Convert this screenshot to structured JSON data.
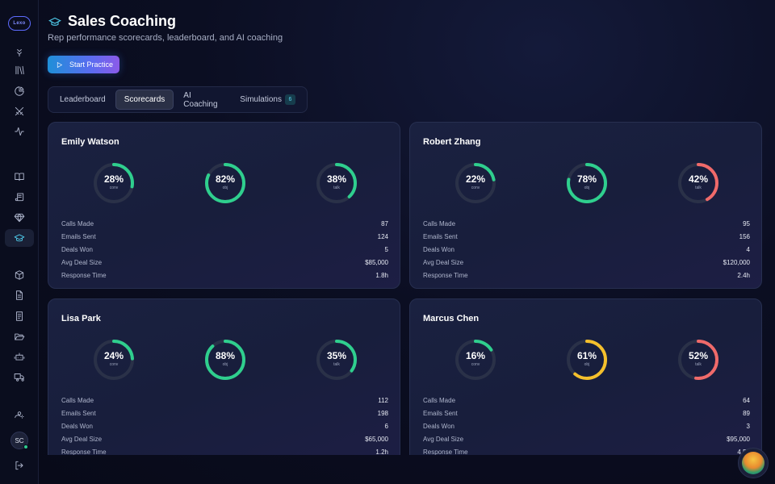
{
  "sidebar": {
    "logo_text": "Lexo",
    "items": [
      {
        "icon": "filter-icon"
      },
      {
        "icon": "library-icon"
      },
      {
        "icon": "pie-chart-icon"
      },
      {
        "icon": "swords-icon"
      },
      {
        "icon": "activity-icon"
      },
      {
        "icon": "book-open-icon"
      },
      {
        "icon": "scroll-icon"
      },
      {
        "icon": "gem-icon"
      },
      {
        "icon": "graduation-cap-icon",
        "active": true
      },
      {
        "icon": "package-icon"
      },
      {
        "icon": "file-text-icon"
      },
      {
        "icon": "receipt-icon"
      },
      {
        "icon": "folder-open-icon"
      },
      {
        "icon": "bot-icon"
      },
      {
        "icon": "truck-icon"
      },
      {
        "icon": "user-cog-icon"
      },
      {
        "icon": "log-out-icon"
      }
    ],
    "avatar_initials": "SC"
  },
  "header": {
    "title": "Sales Coaching",
    "subtitle": "Rep performance scorecards, leaderboard, and AI coaching",
    "start_button": "Start Practice"
  },
  "tabs": [
    {
      "label": "Leaderboard"
    },
    {
      "label": "Scorecards",
      "active": true
    },
    {
      "label": "AI Coaching"
    },
    {
      "label": "Simulations",
      "badge": "6"
    }
  ],
  "colors": {
    "green": "#2fcf8e",
    "yellow": "#f5c02c",
    "red": "#f06a6a",
    "track": "#2a3148"
  },
  "stat_labels": [
    "Calls Made",
    "Emails Sent",
    "Deals Won",
    "Avg Deal Size",
    "Response Time"
  ],
  "reps": [
    {
      "name": "Emily Watson",
      "rings": [
        {
          "pct": "28%",
          "value": 28,
          "label": "conv",
          "color": "#2fcf8e"
        },
        {
          "pct": "82%",
          "value": 82,
          "label": "obj",
          "color": "#2fcf8e"
        },
        {
          "pct": "38%",
          "value": 38,
          "label": "talk",
          "color": "#2fcf8e"
        }
      ],
      "stats": [
        "87",
        "124",
        "5",
        "$85,000",
        "1.8h"
      ]
    },
    {
      "name": "Robert Zhang",
      "rings": [
        {
          "pct": "22%",
          "value": 22,
          "label": "conv",
          "color": "#2fcf8e"
        },
        {
          "pct": "78%",
          "value": 78,
          "label": "obj",
          "color": "#2fcf8e"
        },
        {
          "pct": "42%",
          "value": 42,
          "label": "talk",
          "color": "#f06a6a"
        }
      ],
      "stats": [
        "95",
        "156",
        "4",
        "$120,000",
        "2.4h"
      ]
    },
    {
      "name": "Lisa Park",
      "rings": [
        {
          "pct": "24%",
          "value": 24,
          "label": "conv",
          "color": "#2fcf8e"
        },
        {
          "pct": "88%",
          "value": 88,
          "label": "obj",
          "color": "#2fcf8e"
        },
        {
          "pct": "35%",
          "value": 35,
          "label": "talk",
          "color": "#2fcf8e"
        }
      ],
      "stats": [
        "112",
        "198",
        "6",
        "$65,000",
        "1.2h"
      ]
    },
    {
      "name": "Marcus Chen",
      "rings": [
        {
          "pct": "16%",
          "value": 16,
          "label": "conv",
          "color": "#2fcf8e"
        },
        {
          "pct": "61%",
          "value": 61,
          "label": "obj",
          "color": "#f5c02c"
        },
        {
          "pct": "52%",
          "value": 52,
          "label": "talk",
          "color": "#f06a6a"
        }
      ],
      "stats": [
        "64",
        "89",
        "3",
        "$95,000",
        "4.5h"
      ]
    }
  ]
}
